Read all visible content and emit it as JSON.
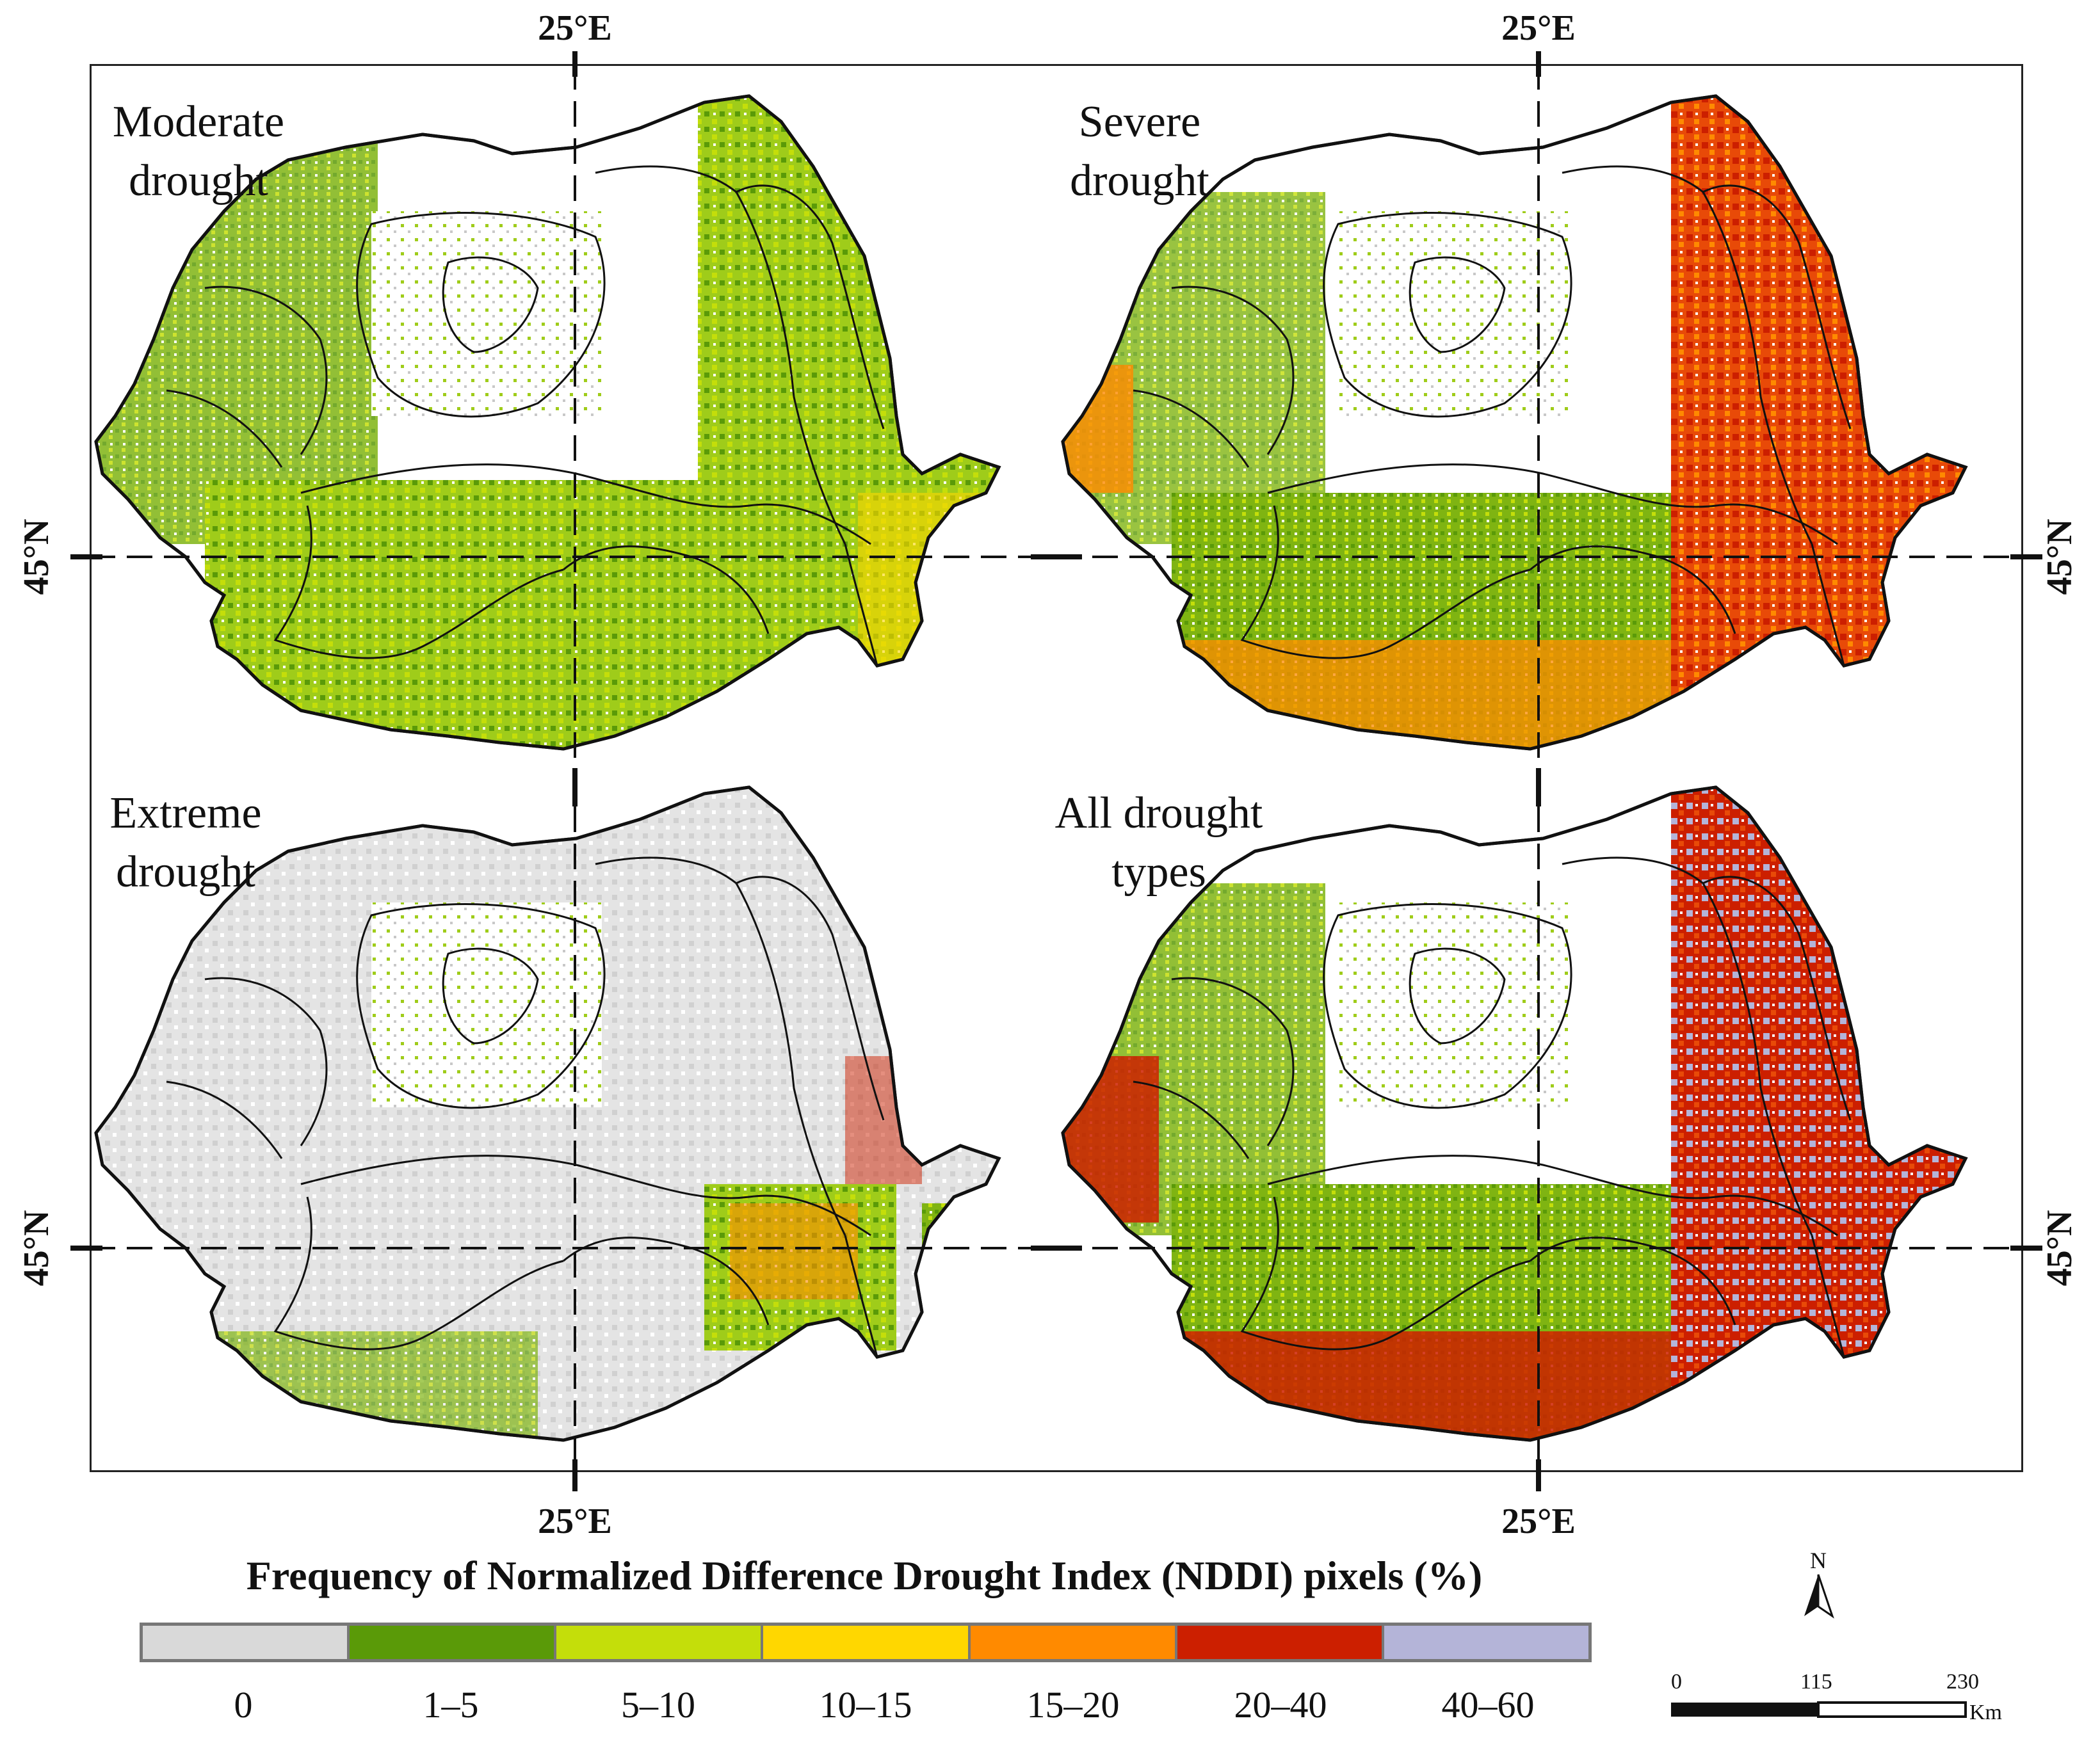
{
  "coordinates": {
    "lon_top_left": "25°E",
    "lon_top_right": "25°E",
    "lon_bottom_left": "25°E",
    "lon_bottom_right": "25°E",
    "lat_left_upper": "45°N",
    "lat_left_lower": "45°N",
    "lat_right_upper": "45°N",
    "lat_right_lower": "45°N"
  },
  "panels": [
    {
      "id": "moderate",
      "title_line1": "Moderate",
      "title_line2": "drought",
      "dominant_classes": [
        "1–5",
        "5–10",
        "10–15",
        "0"
      ]
    },
    {
      "id": "severe",
      "title_line1": "Severe",
      "title_line2": "drought",
      "dominant_classes": [
        "1–5",
        "5–10",
        "15–20",
        "20–40",
        "0"
      ]
    },
    {
      "id": "extreme",
      "title_line1": "Extreme",
      "title_line2": "drought",
      "dominant_classes": [
        "0",
        "1–5",
        "5–10",
        "10–15",
        "15–20"
      ]
    },
    {
      "id": "all",
      "title_line1": "All drought",
      "title_line2": "types",
      "dominant_classes": [
        "1–5",
        "15–20",
        "20–40",
        "40–60"
      ]
    }
  ],
  "legend": {
    "title": "Frequency of Normalized Difference Drought Index (NDDI) pixels (%)",
    "classes": [
      {
        "label": "0",
        "color": "#d9d9d9"
      },
      {
        "label": "1–5",
        "color": "#5a9a08"
      },
      {
        "label": "5–10",
        "color": "#c4de0a"
      },
      {
        "label": "10–15",
        "color": "#ffd700"
      },
      {
        "label": "15–20",
        "color": "#ff8a00"
      },
      {
        "label": "20–40",
        "color": "#cc1f00"
      },
      {
        "label": "40–60",
        "color": "#b4b4d8"
      }
    ]
  },
  "scale_bar": {
    "north_label": "N",
    "tick_0": "0",
    "tick_1": "115",
    "tick_2": "230",
    "unit": "Km"
  }
}
